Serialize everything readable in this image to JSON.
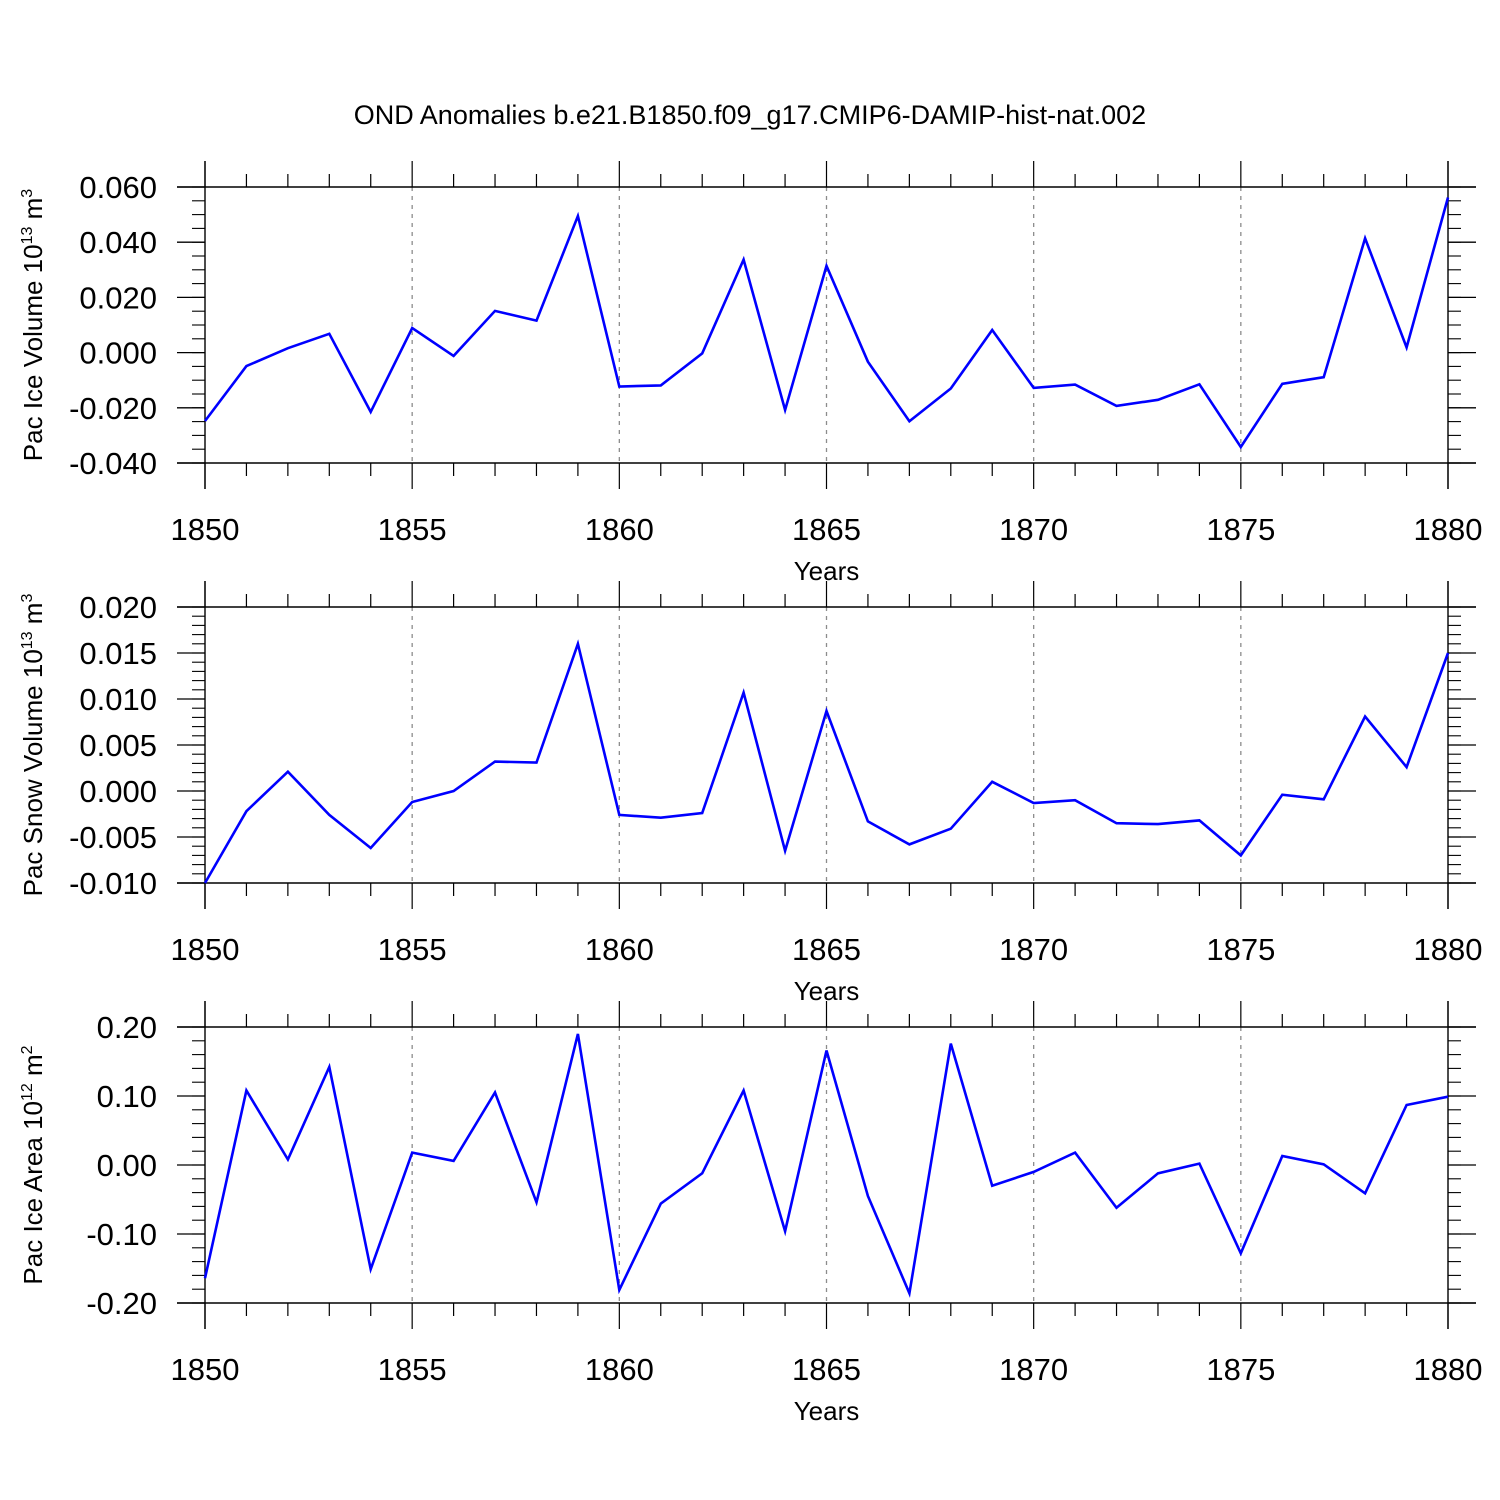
{
  "title": "OND Anomalies b.e21.B1850.f09_g17.CMIP6-DAMIP-hist-nat.002",
  "colors": {
    "line": "#0000ff",
    "axis": "#000000",
    "grid": "#8c8c8c"
  },
  "chart_data": [
    {
      "type": "line",
      "ylabel": "Pac Ice Volume 10",
      "ylabel_exp": "13",
      "ylabel_unit": "m",
      "ylabel_unit_exp": "3",
      "xlabel": "Years",
      "xlim": [
        1850,
        1880
      ],
      "ylim": [
        -0.04,
        0.06
      ],
      "xticks": [
        1850,
        1855,
        1860,
        1865,
        1870,
        1875,
        1880
      ],
      "xtick_labels": [
        "1850",
        "1855",
        "1860",
        "1865",
        "1870",
        "1875",
        "1880"
      ],
      "yticks": [
        -0.04,
        -0.02,
        0.0,
        0.02,
        0.04,
        0.06
      ],
      "ytick_labels": [
        "-0.040",
        "-0.020",
        "0.000",
        "0.020",
        "0.040",
        "0.060"
      ],
      "y_minor_step": 0.005,
      "grid_x": [
        1855,
        1860,
        1865,
        1870,
        1875
      ],
      "x": [
        1850,
        1851,
        1852,
        1853,
        1854,
        1855,
        1856,
        1857,
        1858,
        1859,
        1860,
        1861,
        1862,
        1863,
        1864,
        1865,
        1866,
        1867,
        1868,
        1869,
        1870,
        1871,
        1872,
        1873,
        1874,
        1875,
        1876,
        1877,
        1878,
        1879,
        1880
      ],
      "series": [
        {
          "name": "Pac Ice Volume",
          "values": [
            -0.0248,
            -0.0049,
            0.0016,
            0.0068,
            -0.0215,
            0.0089,
            -0.0012,
            0.0151,
            0.0116,
            0.0495,
            -0.0123,
            -0.0119,
            -0.0003,
            0.0337,
            -0.0208,
            0.0314,
            -0.0033,
            -0.0249,
            -0.013,
            0.0082,
            -0.0128,
            -0.0116,
            -0.0193,
            -0.0171,
            -0.0115,
            -0.0342,
            -0.0113,
            -0.0089,
            0.0414,
            0.0019,
            0.0562
          ]
        }
      ]
    },
    {
      "type": "line",
      "ylabel": "Pac Snow Volume 10",
      "ylabel_exp": "13",
      "ylabel_unit": "m",
      "ylabel_unit_exp": "3",
      "xlabel": "Years",
      "xlim": [
        1850,
        1880
      ],
      "ylim": [
        -0.01,
        0.02
      ],
      "xticks": [
        1850,
        1855,
        1860,
        1865,
        1870,
        1875,
        1880
      ],
      "xtick_labels": [
        "1850",
        "1855",
        "1860",
        "1865",
        "1870",
        "1875",
        "1880"
      ],
      "yticks": [
        -0.01,
        -0.005,
        0.0,
        0.005,
        0.01,
        0.015,
        0.02
      ],
      "ytick_labels": [
        "-0.010",
        "-0.005",
        "0.000",
        "0.005",
        "0.010",
        "0.015",
        "0.020"
      ],
      "y_minor_step": 0.001,
      "grid_x": [
        1855,
        1860,
        1865,
        1870,
        1875
      ],
      "x": [
        1850,
        1851,
        1852,
        1853,
        1854,
        1855,
        1856,
        1857,
        1858,
        1859,
        1860,
        1861,
        1862,
        1863,
        1864,
        1865,
        1866,
        1867,
        1868,
        1869,
        1870,
        1871,
        1872,
        1873,
        1874,
        1875,
        1876,
        1877,
        1878,
        1879,
        1880
      ],
      "series": [
        {
          "name": "Pac Snow Volume",
          "values": [
            -0.01,
            -0.0022,
            0.0021,
            -0.0026,
            -0.0062,
            -0.0012,
            0.0,
            0.0032,
            0.0031,
            0.016,
            -0.0026,
            -0.0029,
            -0.0024,
            0.0107,
            -0.0065,
            0.0087,
            -0.0033,
            -0.0058,
            -0.0041,
            0.001,
            -0.0013,
            -0.001,
            -0.0035,
            -0.0036,
            -0.0032,
            -0.007,
            -0.0004,
            -0.0009,
            0.0081,
            0.0026,
            0.015
          ]
        }
      ]
    },
    {
      "type": "line",
      "ylabel": "Pac Ice Area 10",
      "ylabel_exp": "12",
      "ylabel_unit": "m",
      "ylabel_unit_exp": "2",
      "xlabel": "Years",
      "xlim": [
        1850,
        1880
      ],
      "ylim": [
        -0.2,
        0.2
      ],
      "xticks": [
        1850,
        1855,
        1860,
        1865,
        1870,
        1875,
        1880
      ],
      "xtick_labels": [
        "1850",
        "1855",
        "1860",
        "1865",
        "1870",
        "1875",
        "1880"
      ],
      "yticks": [
        -0.2,
        -0.1,
        0.0,
        0.1,
        0.2
      ],
      "ytick_labels": [
        "-0.20",
        "-0.10",
        "0.00",
        "0.10",
        "0.20"
      ],
      "y_minor_step": 0.02,
      "grid_x": [
        1855,
        1860,
        1865,
        1870,
        1875
      ],
      "x": [
        1850,
        1851,
        1852,
        1853,
        1854,
        1855,
        1856,
        1857,
        1858,
        1859,
        1860,
        1861,
        1862,
        1863,
        1864,
        1865,
        1866,
        1867,
        1868,
        1869,
        1870,
        1871,
        1872,
        1873,
        1874,
        1875,
        1876,
        1877,
        1878,
        1879,
        1880
      ],
      "series": [
        {
          "name": "Pac Ice Area",
          "values": [
            -0.164,
            0.108,
            0.008,
            0.142,
            -0.151,
            0.018,
            0.006,
            0.105,
            -0.054,
            0.19,
            -0.181,
            -0.056,
            -0.012,
            0.108,
            -0.096,
            0.166,
            -0.045,
            -0.186,
            0.176,
            -0.03,
            -0.01,
            0.018,
            -0.062,
            -0.012,
            0.002,
            -0.128,
            0.013,
            0.001,
            -0.041,
            0.087,
            0.099
          ]
        }
      ]
    }
  ]
}
